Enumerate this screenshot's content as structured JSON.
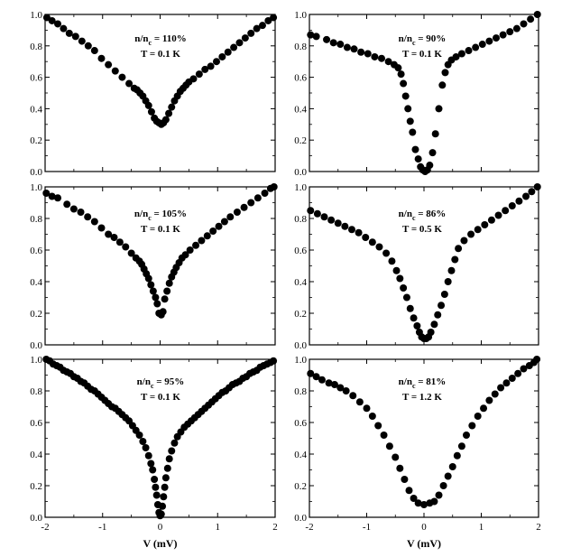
{
  "chart_data": [
    {
      "type": "scatter",
      "annotation": {
        "ratio": "110%",
        "temperature": "T = 0.1 K"
      },
      "xlim": [
        -2,
        2
      ],
      "ylim": [
        0,
        1.0
      ],
      "xticks": [
        "-2",
        "-1",
        "0",
        "1",
        "2"
      ],
      "yticks": [
        "0.0",
        "0.2",
        "0.4",
        "0.6",
        "0.8",
        "1.0"
      ],
      "xlabel": "",
      "points": [
        [
          -1.97,
          0.98
        ],
        [
          -1.88,
          0.96
        ],
        [
          -1.78,
          0.94
        ],
        [
          -1.68,
          0.91
        ],
        [
          -1.58,
          0.88
        ],
        [
          -1.47,
          0.86
        ],
        [
          -1.36,
          0.83
        ],
        [
          -1.25,
          0.8
        ],
        [
          -1.14,
          0.77
        ],
        [
          -1.02,
          0.72
        ],
        [
          -0.9,
          0.68
        ],
        [
          -0.78,
          0.64
        ],
        [
          -0.66,
          0.6
        ],
        [
          -0.54,
          0.56
        ],
        [
          -0.45,
          0.53
        ],
        [
          -0.4,
          0.52
        ],
        [
          -0.35,
          0.5
        ],
        [
          -0.3,
          0.48
        ],
        [
          -0.25,
          0.45
        ],
        [
          -0.2,
          0.42
        ],
        [
          -0.15,
          0.38
        ],
        [
          -0.1,
          0.34
        ],
        [
          -0.06,
          0.32
        ],
        [
          -0.02,
          0.31
        ],
        [
          0.02,
          0.3
        ],
        [
          0.06,
          0.31
        ],
        [
          0.1,
          0.33
        ],
        [
          0.15,
          0.37
        ],
        [
          0.2,
          0.41
        ],
        [
          0.25,
          0.45
        ],
        [
          0.3,
          0.48
        ],
        [
          0.35,
          0.51
        ],
        [
          0.4,
          0.53
        ],
        [
          0.45,
          0.55
        ],
        [
          0.5,
          0.57
        ],
        [
          0.58,
          0.59
        ],
        [
          0.68,
          0.62
        ],
        [
          0.78,
          0.65
        ],
        [
          0.88,
          0.67
        ],
        [
          0.98,
          0.7
        ],
        [
          1.08,
          0.73
        ],
        [
          1.18,
          0.76
        ],
        [
          1.28,
          0.79
        ],
        [
          1.38,
          0.82
        ],
        [
          1.48,
          0.85
        ],
        [
          1.58,
          0.88
        ],
        [
          1.68,
          0.91
        ],
        [
          1.78,
          0.93
        ],
        [
          1.88,
          0.96
        ],
        [
          1.97,
          0.98
        ]
      ]
    },
    {
      "type": "scatter",
      "annotation": {
        "ratio": "90%",
        "temperature": "T = 0.1 K"
      },
      "xlim": [
        -2,
        2
      ],
      "ylim": [
        0,
        1.0
      ],
      "xticks": [
        "-2",
        "-1",
        "0",
        "1",
        "2"
      ],
      "yticks": [
        "0.0",
        "0.2",
        "0.4",
        "0.6",
        "0.8",
        "1.0"
      ],
      "xlabel": "",
      "points": [
        [
          -1.98,
          0.87
        ],
        [
          -1.88,
          0.86
        ],
        [
          -1.7,
          0.84
        ],
        [
          -1.58,
          0.82
        ],
        [
          -1.46,
          0.81
        ],
        [
          -1.34,
          0.79
        ],
        [
          -1.22,
          0.78
        ],
        [
          -1.1,
          0.76
        ],
        [
          -0.98,
          0.75
        ],
        [
          -0.86,
          0.73
        ],
        [
          -0.74,
          0.72
        ],
        [
          -0.62,
          0.7
        ],
        [
          -0.52,
          0.68
        ],
        [
          -0.45,
          0.66
        ],
        [
          -0.4,
          0.62
        ],
        [
          -0.36,
          0.56
        ],
        [
          -0.32,
          0.48
        ],
        [
          -0.28,
          0.4
        ],
        [
          -0.24,
          0.32
        ],
        [
          -0.2,
          0.25
        ],
        [
          -0.15,
          0.14
        ],
        [
          -0.1,
          0.08
        ],
        [
          -0.06,
          0.03
        ],
        [
          -0.02,
          0.01
        ],
        [
          0.02,
          0.0
        ],
        [
          0.06,
          0.01
        ],
        [
          0.1,
          0.04
        ],
        [
          0.15,
          0.12
        ],
        [
          0.2,
          0.24
        ],
        [
          0.26,
          0.4
        ],
        [
          0.32,
          0.55
        ],
        [
          0.37,
          0.63
        ],
        [
          0.42,
          0.68
        ],
        [
          0.48,
          0.71
        ],
        [
          0.56,
          0.73
        ],
        [
          0.66,
          0.75
        ],
        [
          0.78,
          0.77
        ],
        [
          0.9,
          0.79
        ],
        [
          1.02,
          0.81
        ],
        [
          1.14,
          0.83
        ],
        [
          1.26,
          0.85
        ],
        [
          1.38,
          0.87
        ],
        [
          1.5,
          0.89
        ],
        [
          1.62,
          0.91
        ],
        [
          1.74,
          0.94
        ],
        [
          1.86,
          0.97
        ],
        [
          1.98,
          1.0
        ]
      ]
    },
    {
      "type": "scatter",
      "annotation": {
        "ratio": "105%",
        "temperature": "T = 0.1 K"
      },
      "xlim": [
        -2,
        2
      ],
      "ylim": [
        0,
        1.0
      ],
      "xticks": [
        "-2",
        "-1",
        "0",
        "1",
        "2"
      ],
      "yticks": [
        "0.0",
        "0.2",
        "0.4",
        "0.6",
        "0.8",
        "1.0"
      ],
      "xlabel": "",
      "points": [
        [
          -1.98,
          0.96
        ],
        [
          -1.88,
          0.94
        ],
        [
          -1.78,
          0.93
        ],
        [
          -1.62,
          0.89
        ],
        [
          -1.5,
          0.86
        ],
        [
          -1.38,
          0.84
        ],
        [
          -1.26,
          0.81
        ],
        [
          -1.14,
          0.78
        ],
        [
          -1.02,
          0.74
        ],
        [
          -0.9,
          0.7
        ],
        [
          -0.8,
          0.68
        ],
        [
          -0.7,
          0.65
        ],
        [
          -0.6,
          0.62
        ],
        [
          -0.5,
          0.58
        ],
        [
          -0.42,
          0.55
        ],
        [
          -0.36,
          0.53
        ],
        [
          -0.32,
          0.51
        ],
        [
          -0.28,
          0.48
        ],
        [
          -0.24,
          0.45
        ],
        [
          -0.2,
          0.42
        ],
        [
          -0.16,
          0.38
        ],
        [
          -0.12,
          0.34
        ],
        [
          -0.08,
          0.3
        ],
        [
          -0.05,
          0.26
        ],
        [
          -0.02,
          0.2
        ],
        [
          0.02,
          0.19
        ],
        [
          0.05,
          0.21
        ],
        [
          0.08,
          0.29
        ],
        [
          0.12,
          0.34
        ],
        [
          0.16,
          0.39
        ],
        [
          0.2,
          0.43
        ],
        [
          0.24,
          0.46
        ],
        [
          0.28,
          0.49
        ],
        [
          0.33,
          0.52
        ],
        [
          0.38,
          0.55
        ],
        [
          0.44,
          0.57
        ],
        [
          0.52,
          0.6
        ],
        [
          0.62,
          0.63
        ],
        [
          0.72,
          0.66
        ],
        [
          0.82,
          0.69
        ],
        [
          0.92,
          0.72
        ],
        [
          1.02,
          0.75
        ],
        [
          1.12,
          0.78
        ],
        [
          1.22,
          0.81
        ],
        [
          1.34,
          0.84
        ],
        [
          1.46,
          0.87
        ],
        [
          1.58,
          0.9
        ],
        [
          1.7,
          0.93
        ],
        [
          1.82,
          0.96
        ],
        [
          1.92,
          0.99
        ],
        [
          1.98,
          1.0
        ]
      ]
    },
    {
      "type": "scatter",
      "annotation": {
        "ratio": "86%",
        "temperature": "T = 0.5 K"
      },
      "xlim": [
        -2,
        2
      ],
      "ylim": [
        0,
        1.0
      ],
      "xticks": [
        "-2",
        "-1",
        "0",
        "1",
        "2"
      ],
      "yticks": [
        "0.0",
        "0.2",
        "0.4",
        "0.6",
        "0.8",
        "1.0"
      ],
      "xlabel": "",
      "points": [
        [
          -1.98,
          0.85
        ],
        [
          -1.86,
          0.83
        ],
        [
          -1.74,
          0.81
        ],
        [
          -1.62,
          0.79
        ],
        [
          -1.5,
          0.77
        ],
        [
          -1.38,
          0.75
        ],
        [
          -1.26,
          0.73
        ],
        [
          -1.14,
          0.71
        ],
        [
          -1.02,
          0.68
        ],
        [
          -0.9,
          0.65
        ],
        [
          -0.78,
          0.62
        ],
        [
          -0.66,
          0.58
        ],
        [
          -0.56,
          0.53
        ],
        [
          -0.48,
          0.47
        ],
        [
          -0.42,
          0.42
        ],
        [
          -0.36,
          0.36
        ],
        [
          -0.3,
          0.3
        ],
        [
          -0.24,
          0.23
        ],
        [
          -0.18,
          0.17
        ],
        [
          -0.12,
          0.12
        ],
        [
          -0.08,
          0.08
        ],
        [
          -0.04,
          0.05
        ],
        [
          0.0,
          0.04
        ],
        [
          0.04,
          0.04
        ],
        [
          0.08,
          0.05
        ],
        [
          0.12,
          0.08
        ],
        [
          0.18,
          0.13
        ],
        [
          0.24,
          0.19
        ],
        [
          0.3,
          0.25
        ],
        [
          0.36,
          0.32
        ],
        [
          0.42,
          0.4
        ],
        [
          0.48,
          0.47
        ],
        [
          0.54,
          0.54
        ],
        [
          0.6,
          0.61
        ],
        [
          0.7,
          0.66
        ],
        [
          0.82,
          0.7
        ],
        [
          0.94,
          0.73
        ],
        [
          1.06,
          0.76
        ],
        [
          1.18,
          0.79
        ],
        [
          1.3,
          0.82
        ],
        [
          1.42,
          0.85
        ],
        [
          1.54,
          0.88
        ],
        [
          1.66,
          0.91
        ],
        [
          1.78,
          0.94
        ],
        [
          1.88,
          0.97
        ],
        [
          1.98,
          1.0
        ]
      ]
    },
    {
      "type": "scatter",
      "annotation": {
        "ratio": "95%",
        "temperature": "T = 0.1 K"
      },
      "xlim": [
        -2,
        2
      ],
      "ylim": [
        0,
        1.0
      ],
      "xticks": [
        "-2",
        "-1",
        "0",
        "1",
        "2"
      ],
      "yticks": [
        "0.0",
        "0.2",
        "0.4",
        "0.6",
        "0.8",
        "1.0"
      ],
      "xlabel": "V  (mV)",
      "points": [
        [
          -1.98,
          1.0
        ],
        [
          -1.92,
          0.99
        ],
        [
          -1.86,
          0.97
        ],
        [
          -1.8,
          0.96
        ],
        [
          -1.74,
          0.95
        ],
        [
          -1.68,
          0.93
        ],
        [
          -1.62,
          0.92
        ],
        [
          -1.56,
          0.91
        ],
        [
          -1.5,
          0.89
        ],
        [
          -1.44,
          0.88
        ],
        [
          -1.38,
          0.86
        ],
        [
          -1.32,
          0.85
        ],
        [
          -1.26,
          0.83
        ],
        [
          -1.2,
          0.81
        ],
        [
          -1.14,
          0.8
        ],
        [
          -1.08,
          0.78
        ],
        [
          -1.02,
          0.76
        ],
        [
          -0.96,
          0.74
        ],
        [
          -0.9,
          0.72
        ],
        [
          -0.84,
          0.7
        ],
        [
          -0.78,
          0.69
        ],
        [
          -0.72,
          0.67
        ],
        [
          -0.66,
          0.65
        ],
        [
          -0.6,
          0.63
        ],
        [
          -0.54,
          0.61
        ],
        [
          -0.48,
          0.58
        ],
        [
          -0.42,
          0.55
        ],
        [
          -0.36,
          0.52
        ],
        [
          -0.3,
          0.48
        ],
        [
          -0.25,
          0.44
        ],
        [
          -0.2,
          0.39
        ],
        [
          -0.16,
          0.34
        ],
        [
          -0.13,
          0.3
        ],
        [
          -0.1,
          0.24
        ],
        [
          -0.08,
          0.19
        ],
        [
          -0.06,
          0.14
        ],
        [
          -0.04,
          0.08
        ],
        [
          -0.02,
          0.03
        ],
        [
          0.0,
          0.01
        ],
        [
          0.02,
          0.02
        ],
        [
          0.04,
          0.07
        ],
        [
          0.06,
          0.13
        ],
        [
          0.08,
          0.19
        ],
        [
          0.1,
          0.25
        ],
        [
          0.13,
          0.31
        ],
        [
          0.16,
          0.37
        ],
        [
          0.2,
          0.42
        ],
        [
          0.25,
          0.47
        ],
        [
          0.3,
          0.51
        ],
        [
          0.36,
          0.54
        ],
        [
          0.42,
          0.57
        ],
        [
          0.48,
          0.59
        ],
        [
          0.54,
          0.61
        ],
        [
          0.6,
          0.63
        ],
        [
          0.66,
          0.65
        ],
        [
          0.72,
          0.67
        ],
        [
          0.78,
          0.69
        ],
        [
          0.84,
          0.71
        ],
        [
          0.9,
          0.73
        ],
        [
          0.96,
          0.75
        ],
        [
          1.02,
          0.77
        ],
        [
          1.08,
          0.79
        ],
        [
          1.14,
          0.8
        ],
        [
          1.2,
          0.82
        ],
        [
          1.26,
          0.84
        ],
        [
          1.32,
          0.85
        ],
        [
          1.38,
          0.86
        ],
        [
          1.44,
          0.88
        ],
        [
          1.5,
          0.89
        ],
        [
          1.56,
          0.91
        ],
        [
          1.62,
          0.92
        ],
        [
          1.68,
          0.93
        ],
        [
          1.74,
          0.95
        ],
        [
          1.8,
          0.96
        ],
        [
          1.86,
          0.97
        ],
        [
          1.92,
          0.98
        ],
        [
          1.97,
          0.99
        ]
      ]
    },
    {
      "type": "scatter",
      "annotation": {
        "ratio": "81%",
        "temperature": "T = 1.2 K"
      },
      "xlim": [
        -2,
        2
      ],
      "ylim": [
        0,
        1.0
      ],
      "xticks": [
        "-2",
        "-1",
        "0",
        "1",
        "2"
      ],
      "yticks": [
        "0.0",
        "0.2",
        "0.4",
        "0.6",
        "0.8",
        "1.0"
      ],
      "xlabel": "V  (mV)",
      "points": [
        [
          -1.98,
          0.91
        ],
        [
          -1.88,
          0.89
        ],
        [
          -1.78,
          0.87
        ],
        [
          -1.66,
          0.85
        ],
        [
          -1.56,
          0.84
        ],
        [
          -1.46,
          0.82
        ],
        [
          -1.36,
          0.8
        ],
        [
          -1.24,
          0.77
        ],
        [
          -1.12,
          0.73
        ],
        [
          -1.0,
          0.69
        ],
        [
          -0.9,
          0.64
        ],
        [
          -0.8,
          0.58
        ],
        [
          -0.7,
          0.52
        ],
        [
          -0.6,
          0.45
        ],
        [
          -0.5,
          0.38
        ],
        [
          -0.42,
          0.31
        ],
        [
          -0.34,
          0.24
        ],
        [
          -0.26,
          0.17
        ],
        [
          -0.18,
          0.12
        ],
        [
          -0.1,
          0.09
        ],
        [
          0.0,
          0.08
        ],
        [
          0.1,
          0.09
        ],
        [
          0.18,
          0.1
        ],
        [
          0.26,
          0.14
        ],
        [
          0.34,
          0.2
        ],
        [
          0.42,
          0.26
        ],
        [
          0.5,
          0.32
        ],
        [
          0.58,
          0.39
        ],
        [
          0.66,
          0.45
        ],
        [
          0.74,
          0.52
        ],
        [
          0.84,
          0.58
        ],
        [
          0.94,
          0.64
        ],
        [
          1.04,
          0.69
        ],
        [
          1.14,
          0.74
        ],
        [
          1.24,
          0.78
        ],
        [
          1.34,
          0.82
        ],
        [
          1.44,
          0.85
        ],
        [
          1.54,
          0.88
        ],
        [
          1.64,
          0.91
        ],
        [
          1.74,
          0.94
        ],
        [
          1.84,
          0.96
        ],
        [
          1.92,
          0.98
        ],
        [
          1.97,
          1.0
        ]
      ]
    }
  ]
}
